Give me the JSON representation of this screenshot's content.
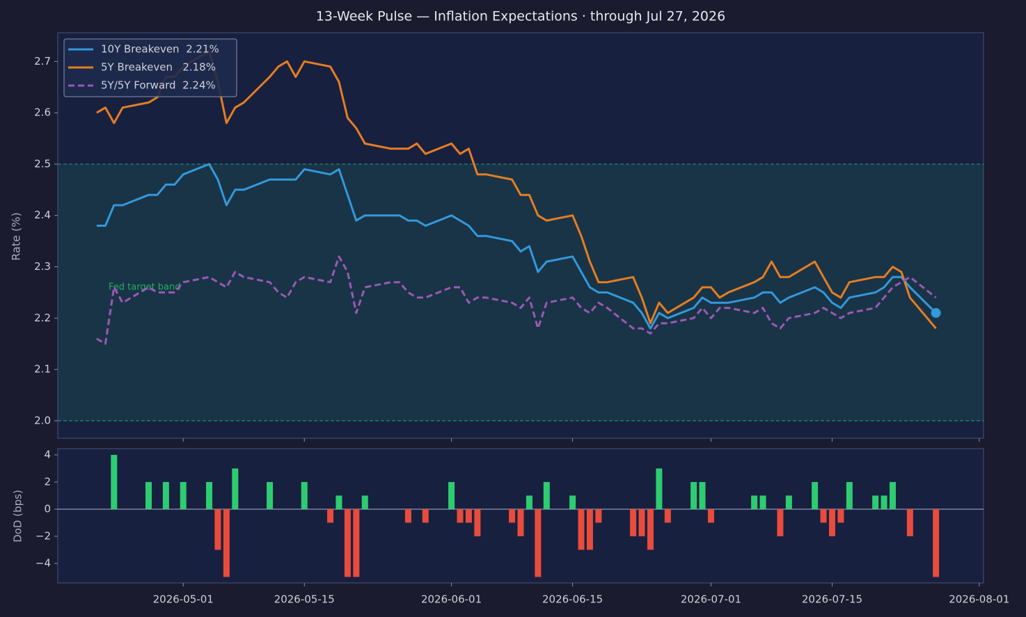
{
  "title": "13-Week Pulse — Inflation Expectations  ·  through Jul 27, 2026",
  "chart_data": [
    {
      "type": "line",
      "ylabel": "Rate (%)",
      "x": [
        "2026-04-21",
        "2026-04-22",
        "2026-04-23",
        "2026-04-24",
        "2026-04-27",
        "2026-04-28",
        "2026-04-29",
        "2026-04-30",
        "2026-05-01",
        "2026-05-04",
        "2026-05-05",
        "2026-05-06",
        "2026-05-07",
        "2026-05-08",
        "2026-05-11",
        "2026-05-12",
        "2026-05-13",
        "2026-05-14",
        "2026-05-15",
        "2026-05-18",
        "2026-05-19",
        "2026-05-20",
        "2026-05-21",
        "2026-05-22",
        "2026-05-25",
        "2026-05-26",
        "2026-05-27",
        "2026-05-28",
        "2026-05-29",
        "2026-06-01",
        "2026-06-02",
        "2026-06-03",
        "2026-06-04",
        "2026-06-05",
        "2026-06-08",
        "2026-06-09",
        "2026-06-10",
        "2026-06-11",
        "2026-06-12",
        "2026-06-15",
        "2026-06-16",
        "2026-06-17",
        "2026-06-18",
        "2026-06-19",
        "2026-06-22",
        "2026-06-23",
        "2026-06-24",
        "2026-06-25",
        "2026-06-26",
        "2026-06-29",
        "2026-06-30",
        "2026-07-01",
        "2026-07-02",
        "2026-07-03",
        "2026-07-06",
        "2026-07-07",
        "2026-07-08",
        "2026-07-09",
        "2026-07-10",
        "2026-07-13",
        "2026-07-14",
        "2026-07-15",
        "2026-07-16",
        "2026-07-17",
        "2026-07-20",
        "2026-07-21",
        "2026-07-22",
        "2026-07-23",
        "2026-07-24",
        "2026-07-27"
      ],
      "series": [
        {
          "name": "10Y Breakeven  2.21%",
          "color": "#3498db",
          "dash": false,
          "end_marker": true,
          "values": [
            2.38,
            2.38,
            2.42,
            2.42,
            2.44,
            2.44,
            2.46,
            2.46,
            2.48,
            2.5,
            2.47,
            2.42,
            2.45,
            2.45,
            2.47,
            2.47,
            2.47,
            2.47,
            2.49,
            2.48,
            2.49,
            2.44,
            2.39,
            2.4,
            2.4,
            2.4,
            2.39,
            2.39,
            2.38,
            2.4,
            2.39,
            2.38,
            2.36,
            2.36,
            2.35,
            2.33,
            2.34,
            2.29,
            2.31,
            2.32,
            2.29,
            2.26,
            2.25,
            2.25,
            2.23,
            2.21,
            2.18,
            2.21,
            2.2,
            2.22,
            2.24,
            2.23,
            2.23,
            2.23,
            2.24,
            2.25,
            2.25,
            2.23,
            2.24,
            2.26,
            2.25,
            2.23,
            2.22,
            2.24,
            2.25,
            2.26,
            2.28,
            2.28,
            2.26,
            2.21
          ]
        },
        {
          "name": "5Y Breakeven   2.18%",
          "color": "#e67e22",
          "dash": false,
          "end_marker": false,
          "values": [
            2.6,
            2.61,
            2.58,
            2.61,
            2.62,
            2.63,
            2.67,
            2.67,
            2.69,
            2.72,
            2.66,
            2.58,
            2.61,
            2.62,
            2.67,
            2.69,
            2.7,
            2.67,
            2.7,
            2.69,
            2.66,
            2.59,
            2.57,
            2.54,
            2.53,
            2.53,
            2.53,
            2.54,
            2.52,
            2.54,
            2.52,
            2.53,
            2.48,
            2.48,
            2.47,
            2.44,
            2.44,
            2.4,
            2.39,
            2.4,
            2.36,
            2.31,
            2.27,
            2.27,
            2.28,
            2.24,
            2.19,
            2.23,
            2.21,
            2.24,
            2.26,
            2.26,
            2.24,
            2.25,
            2.27,
            2.28,
            2.31,
            2.28,
            2.28,
            2.31,
            2.28,
            2.25,
            2.24,
            2.27,
            2.28,
            2.28,
            2.3,
            2.29,
            2.24,
            2.18
          ]
        },
        {
          "name": "5Y/5Y Forward  2.24%",
          "color": "#9b59b6",
          "dash": true,
          "end_marker": false,
          "values": [
            2.16,
            2.15,
            2.26,
            2.23,
            2.26,
            2.25,
            2.25,
            2.25,
            2.27,
            2.28,
            2.27,
            2.26,
            2.29,
            2.28,
            2.27,
            2.25,
            2.24,
            2.27,
            2.28,
            2.27,
            2.32,
            2.29,
            2.21,
            2.26,
            2.27,
            2.27,
            2.25,
            2.24,
            2.24,
            2.26,
            2.26,
            2.23,
            2.24,
            2.24,
            2.23,
            2.22,
            2.24,
            2.18,
            2.23,
            2.24,
            2.22,
            2.21,
            2.23,
            2.22,
            2.18,
            2.18,
            2.17,
            2.19,
            2.19,
            2.2,
            2.22,
            2.2,
            2.22,
            2.22,
            2.21,
            2.22,
            2.19,
            2.18,
            2.2,
            2.21,
            2.22,
            2.21,
            2.2,
            2.21,
            2.22,
            2.24,
            2.26,
            2.27,
            2.28,
            2.24
          ]
        }
      ],
      "band": {
        "label": "Fed target band",
        "range": [
          2.0,
          2.5
        ],
        "color": "#1f8f6a"
      },
      "ylim": [
        1.966,
        2.756
      ],
      "yticks": [
        {
          "value": 2.0,
          "label": "2.0"
        },
        2.1,
        2.2,
        2.3,
        2.4,
        2.5,
        2.6,
        2.7
      ],
      "legend": "upper left"
    },
    {
      "type": "bar",
      "ylabel": "DoD (bps)",
      "x": [
        "2026-04-21",
        "2026-04-22",
        "2026-04-23",
        "2026-04-24",
        "2026-04-27",
        "2026-04-28",
        "2026-04-29",
        "2026-04-30",
        "2026-05-01",
        "2026-05-04",
        "2026-05-05",
        "2026-05-06",
        "2026-05-07",
        "2026-05-08",
        "2026-05-11",
        "2026-05-12",
        "2026-05-13",
        "2026-05-14",
        "2026-05-15",
        "2026-05-18",
        "2026-05-19",
        "2026-05-20",
        "2026-05-21",
        "2026-05-22",
        "2026-05-25",
        "2026-05-26",
        "2026-05-27",
        "2026-05-28",
        "2026-05-29",
        "2026-06-01",
        "2026-06-02",
        "2026-06-03",
        "2026-06-04",
        "2026-06-05",
        "2026-06-08",
        "2026-06-09",
        "2026-06-10",
        "2026-06-11",
        "2026-06-12",
        "2026-06-15",
        "2026-06-16",
        "2026-06-17",
        "2026-06-18",
        "2026-06-19",
        "2026-06-22",
        "2026-06-23",
        "2026-06-24",
        "2026-06-25",
        "2026-06-26",
        "2026-06-29",
        "2026-06-30",
        "2026-07-01",
        "2026-07-02",
        "2026-07-03",
        "2026-07-06",
        "2026-07-07",
        "2026-07-08",
        "2026-07-09",
        "2026-07-10",
        "2026-07-13",
        "2026-07-14",
        "2026-07-15",
        "2026-07-16",
        "2026-07-17",
        "2026-07-20",
        "2026-07-21",
        "2026-07-22",
        "2026-07-23",
        "2026-07-24",
        "2026-07-27"
      ],
      "values": [
        null,
        0,
        4,
        0,
        2,
        0,
        2,
        0,
        2,
        2,
        -3,
        -5,
        3,
        0,
        2,
        0,
        0,
        0,
        2,
        -1,
        1,
        -5,
        -5,
        1,
        0,
        0,
        -1,
        0,
        -1,
        2,
        -1,
        -1,
        -2,
        0,
        -1,
        -2,
        1,
        -5,
        2,
        1,
        -3,
        -3,
        -1,
        0,
        -2,
        -2,
        -3,
        3,
        -1,
        2,
        2,
        -1,
        0,
        0,
        1,
        1,
        0,
        -2,
        1,
        2,
        -1,
        -2,
        -1,
        2,
        1,
        1,
        2,
        0,
        -2,
        -5
      ],
      "positive_color": "#2ecc71",
      "negative_color": "#e74c3c",
      "ylim": [
        -5.44,
        4.46
      ],
      "yticks": [
        {
          "value": -4,
          "label": "−4"
        },
        {
          "value": -2,
          "label": "−2"
        },
        0,
        2,
        4
      ],
      "xlim": [
        "2026-04-16T12:00:00Z",
        "2026-08-01T12:00:00Z"
      ],
      "xticks": [
        "2026-05-01",
        "2026-05-15",
        "2026-06-01",
        "2026-06-15",
        "2026-07-01",
        "2026-07-15",
        "2026-08-01"
      ]
    }
  ]
}
